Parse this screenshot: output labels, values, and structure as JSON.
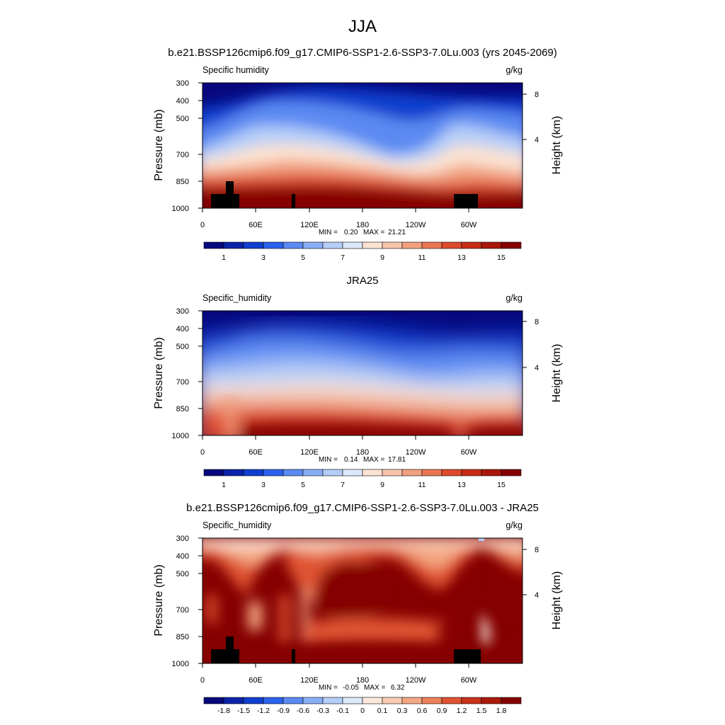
{
  "page": {
    "season": "JJA",
    "model_title": "b.e21.BSSP126cmip6.f09_g17.CMIP6-SSP1-2.6-SSP3-7.0Lu.003 (yrs 2045-2069)",
    "obs_title": "JRA25",
    "diff_title": "b.e21.BSSP126cmip6.f09_g17.CMIP6-SSP1-2.6-SSP3-7.0Lu.003 - JRA25"
  },
  "palettes": {
    "abs": [
      "#08087e",
      "#0a23a8",
      "#0f3fcf",
      "#2b62ee",
      "#5b8af2",
      "#8aaef5",
      "#b5cef8",
      "#dde9fa",
      "#fbe3d2",
      "#f7c4aa",
      "#f1a07f",
      "#ea7653",
      "#dd4a2d",
      "#c72c17",
      "#a9170b",
      "#850000"
    ],
    "diff": [
      "#08087e",
      "#0a23a8",
      "#0f3fcf",
      "#2b62ee",
      "#5b8af2",
      "#8aaef5",
      "#b5cef8",
      "#dde9fa",
      "#fde9dc",
      "#f9cbb0",
      "#f4a783",
      "#ec7f58",
      "#df5232",
      "#c93219",
      "#ab1a0b",
      "#850000"
    ]
  },
  "chart_data": [
    {
      "type": "heatmap",
      "title": "b.e21.BSSP126cmip6.f09_g17.CMIP6-SSP1-2.6-SSP3-7.0Lu.003 (yrs 2045-2069)",
      "variable": "Specific humidity",
      "units": "g/kg",
      "ylabel": "Pressure (mb)",
      "y2label": "Height (km)",
      "x_ticks": [
        "0",
        "60E",
        "120E",
        "180",
        "120W",
        "60W"
      ],
      "y_ticks": [
        300,
        400,
        500,
        700,
        850,
        1000
      ],
      "y2_ticks": [
        8,
        4
      ],
      "stats": {
        "min_label": "MIN =",
        "min": "0.20",
        "max_label": "MAX =",
        "max": "21.21"
      },
      "colorbar_labels": [
        "1",
        "3",
        "5",
        "7",
        "9",
        "11",
        "13",
        "15"
      ],
      "colorbar_levels": [
        0.5,
        1,
        2,
        3,
        4,
        5,
        6,
        7,
        8,
        9,
        10,
        11,
        12,
        13,
        14,
        15
      ],
      "terrain": true
    },
    {
      "type": "heatmap",
      "title": "JRA25",
      "variable": "Specific_humidity",
      "units": "g/kg",
      "ylabel": "Pressure (mb)",
      "y2label": "Height (km)",
      "x_ticks": [
        "0",
        "60E",
        "120E",
        "180",
        "120W",
        "60W"
      ],
      "y_ticks": [
        300,
        400,
        500,
        700,
        850,
        1000
      ],
      "y2_ticks": [
        8,
        4
      ],
      "stats": {
        "min_label": "MIN =",
        "min": "0.14",
        "max_label": "MAX =",
        "max": "17.81"
      },
      "colorbar_labels": [
        "1",
        "3",
        "5",
        "7",
        "9",
        "11",
        "13",
        "15"
      ],
      "colorbar_levels": [
        0.5,
        1,
        2,
        3,
        4,
        5,
        6,
        7,
        8,
        9,
        10,
        11,
        12,
        13,
        14,
        15
      ],
      "terrain": false
    },
    {
      "type": "heatmap",
      "title": "b.e21.BSSP126cmip6.f09_g17.CMIP6-SSP1-2.6-SSP3-7.0Lu.003 - JRA25",
      "variable": "Specific_humidity",
      "units": "g/kg",
      "ylabel": "Pressure (mb)",
      "y2label": "Height (km)",
      "x_ticks": [
        "0",
        "60E",
        "120E",
        "180",
        "120W",
        "60W"
      ],
      "y_ticks": [
        300,
        400,
        500,
        700,
        850,
        1000
      ],
      "y2_ticks": [
        8,
        4
      ],
      "stats": {
        "min_label": "MIN =",
        "min": "-0.05",
        "max_label": "MAX =",
        "max": "6.32"
      },
      "colorbar_labels": [
        "-1.8",
        "-1.5",
        "-1.2",
        "-0.9",
        "-0.6",
        "-0.3",
        "-0.1",
        "0",
        "0.1",
        "0.3",
        "0.6",
        "0.9",
        "1.2",
        "1.5",
        "1.8"
      ],
      "colorbar_levels": [
        -1.8,
        -1.5,
        -1.2,
        -0.9,
        -0.6,
        -0.3,
        -0.1,
        0,
        0.1,
        0.3,
        0.6,
        0.9,
        1.2,
        1.5,
        1.8
      ],
      "terrain": true
    }
  ]
}
